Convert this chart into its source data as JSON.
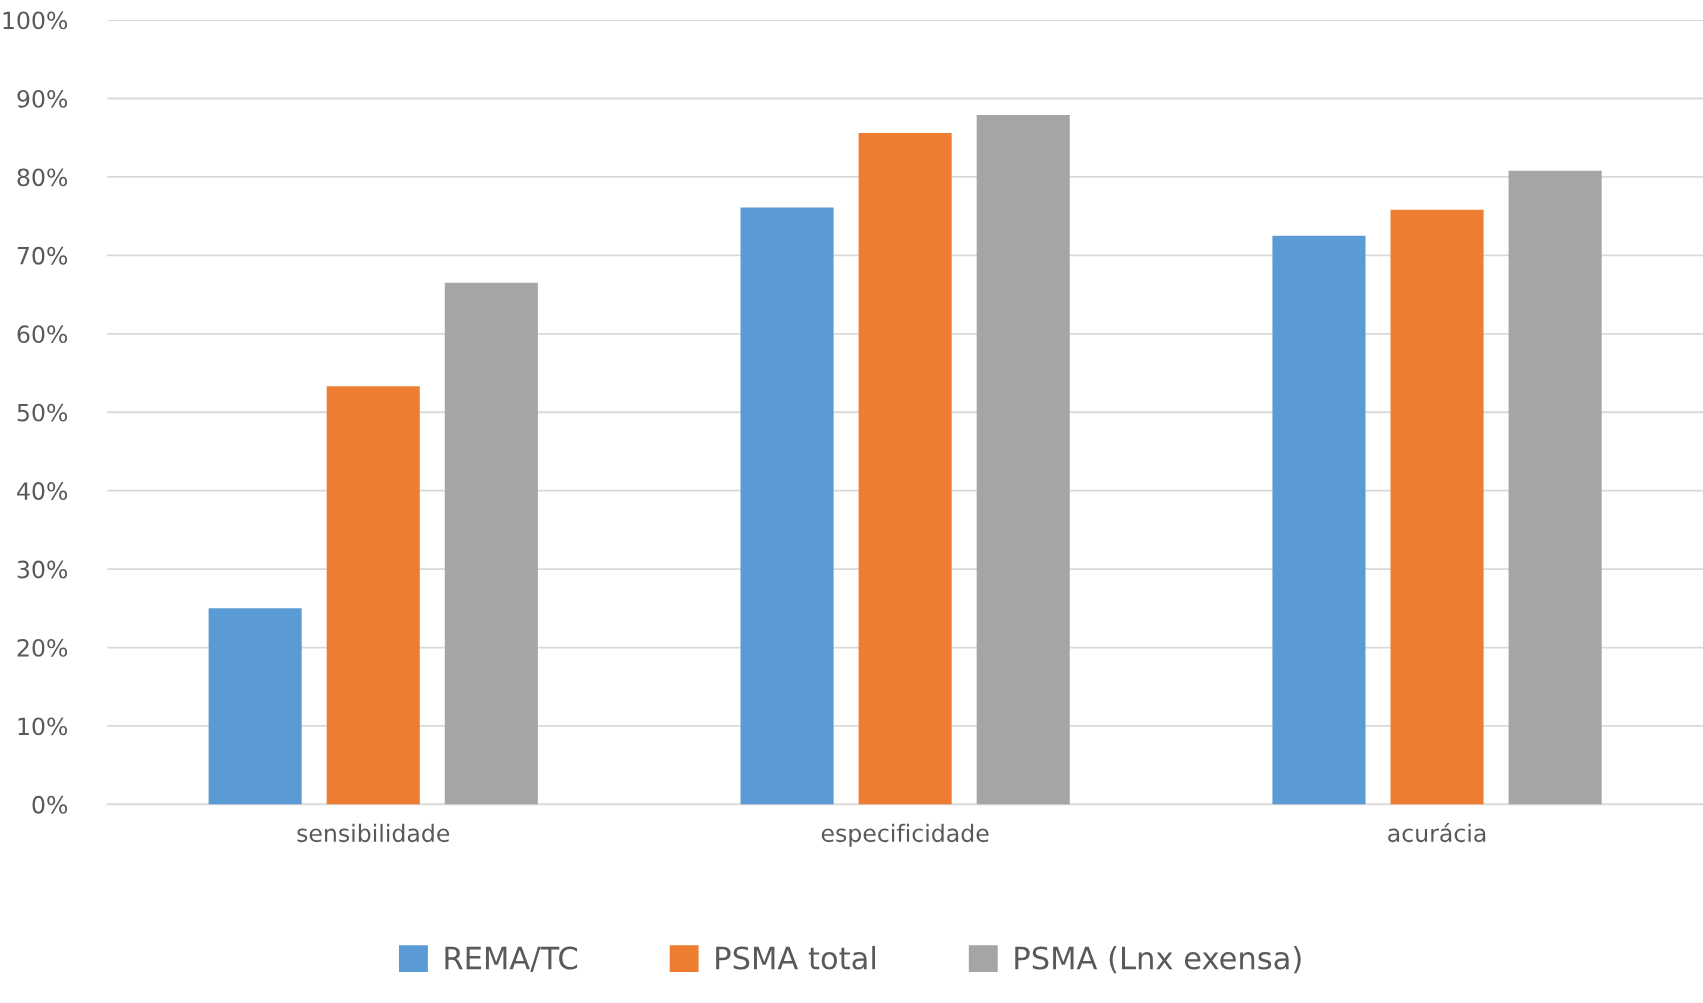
{
  "chart_data": {
    "type": "bar",
    "categories": [
      "sensibilidade",
      "especificidade",
      "acurácia"
    ],
    "series": [
      {
        "name": "REMA/TC",
        "color": "#5b9bd5",
        "values": [
          25,
          76.1,
          72.5
        ]
      },
      {
        "name": "PSMA total",
        "color": "#ed7d31",
        "values": [
          53.3,
          85.6,
          75.8
        ]
      },
      {
        "name": "PSMA (Lnx exensa)",
        "color": "#a5a5a5",
        "values": [
          66.5,
          87.9,
          80.8
        ]
      }
    ],
    "ylim": [
      0,
      100
    ],
    "yticks": [
      {
        "value": 0,
        "label": "0%"
      },
      {
        "value": 10,
        "label": "10%"
      },
      {
        "value": 20,
        "label": "20%"
      },
      {
        "value": 30,
        "label": "30%"
      },
      {
        "value": 40,
        "label": "40%"
      },
      {
        "value": 50,
        "label": "50%"
      },
      {
        "value": 60,
        "label": "60%"
      },
      {
        "value": 70,
        "label": "70%"
      },
      {
        "value": 80,
        "label": "80%"
      },
      {
        "value": 90,
        "label": "90%"
      },
      {
        "value": 100,
        "label": "100%"
      }
    ],
    "grid": "y",
    "legend": "bottom"
  }
}
